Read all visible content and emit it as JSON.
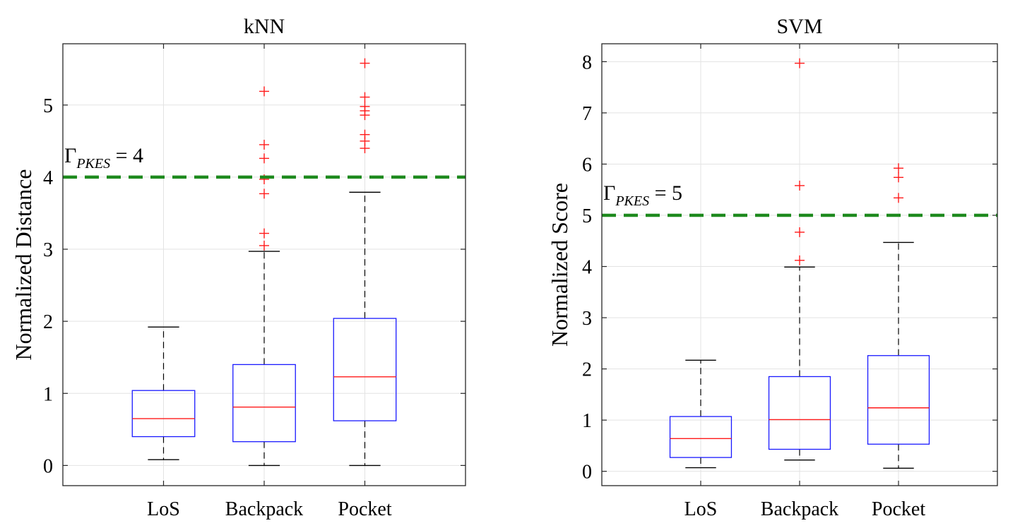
{
  "chart_data": [
    {
      "type": "boxplot",
      "title": "kNN",
      "ylabel": "Normalized Distance",
      "xlabel": "",
      "ylim": [
        -0.28,
        5.85
      ],
      "yticks": [
        "0",
        "1",
        "2",
        "3",
        "4",
        "5"
      ],
      "grid": true,
      "categories": [
        "LoS",
        "Backpack",
        "Pocket"
      ],
      "boxes": [
        {
          "category": "LoS",
          "whisker_low": 0.08,
          "q1": 0.4,
          "median": 0.65,
          "q3": 1.04,
          "whisker_high": 1.92,
          "outliers": []
        },
        {
          "category": "Backpack",
          "whisker_low": 0.0,
          "q1": 0.33,
          "median": 0.81,
          "q3": 1.4,
          "whisker_high": 2.97,
          "outliers": [
            3.05,
            3.22,
            3.77,
            3.97,
            4.26,
            4.45,
            5.19
          ]
        },
        {
          "category": "Pocket",
          "whisker_low": 0.0,
          "q1": 0.62,
          "median": 1.23,
          "q3": 2.04,
          "whisker_high": 3.79,
          "outliers": [
            4.4,
            4.5,
            4.59,
            4.86,
            4.92,
            4.98,
            5.11,
            5.58
          ]
        }
      ],
      "threshold": {
        "value": 4,
        "label_main": "Γ",
        "label_sub": "PKES",
        "label_eq": " = 4",
        "color": "#1e8a1e"
      }
    },
    {
      "type": "boxplot",
      "title": "SVM",
      "ylabel": "Normalized Score",
      "xlabel": "",
      "ylim": [
        -0.28,
        8.35
      ],
      "yticks": [
        "0",
        "1",
        "2",
        "3",
        "4",
        "5",
        "6",
        "7",
        "8"
      ],
      "grid": true,
      "categories": [
        "LoS",
        "Backpack",
        "Pocket"
      ],
      "boxes": [
        {
          "category": "LoS",
          "whisker_low": 0.07,
          "q1": 0.27,
          "median": 0.64,
          "q3": 1.07,
          "whisker_high": 2.17,
          "outliers": []
        },
        {
          "category": "Backpack",
          "whisker_low": 0.22,
          "q1": 0.43,
          "median": 1.01,
          "q3": 1.85,
          "whisker_high": 3.99,
          "outliers": [
            4.12,
            4.67,
            5.58,
            7.97
          ]
        },
        {
          "category": "Pocket",
          "whisker_low": 0.06,
          "q1": 0.53,
          "median": 1.24,
          "q3": 2.26,
          "whisker_high": 4.47,
          "outliers": [
            5.34,
            5.74,
            5.92
          ]
        }
      ],
      "threshold": {
        "value": 5,
        "label_main": "Γ",
        "label_sub": "PKES",
        "label_eq": " = 5",
        "color": "#1e8a1e"
      }
    }
  ],
  "colors": {
    "box": "#1a1aff",
    "median": "#ff1a1a",
    "outlier": "#ff1a1a",
    "whisker": "#000000",
    "grid": "#e3e3e3",
    "axes": "#262626"
  }
}
